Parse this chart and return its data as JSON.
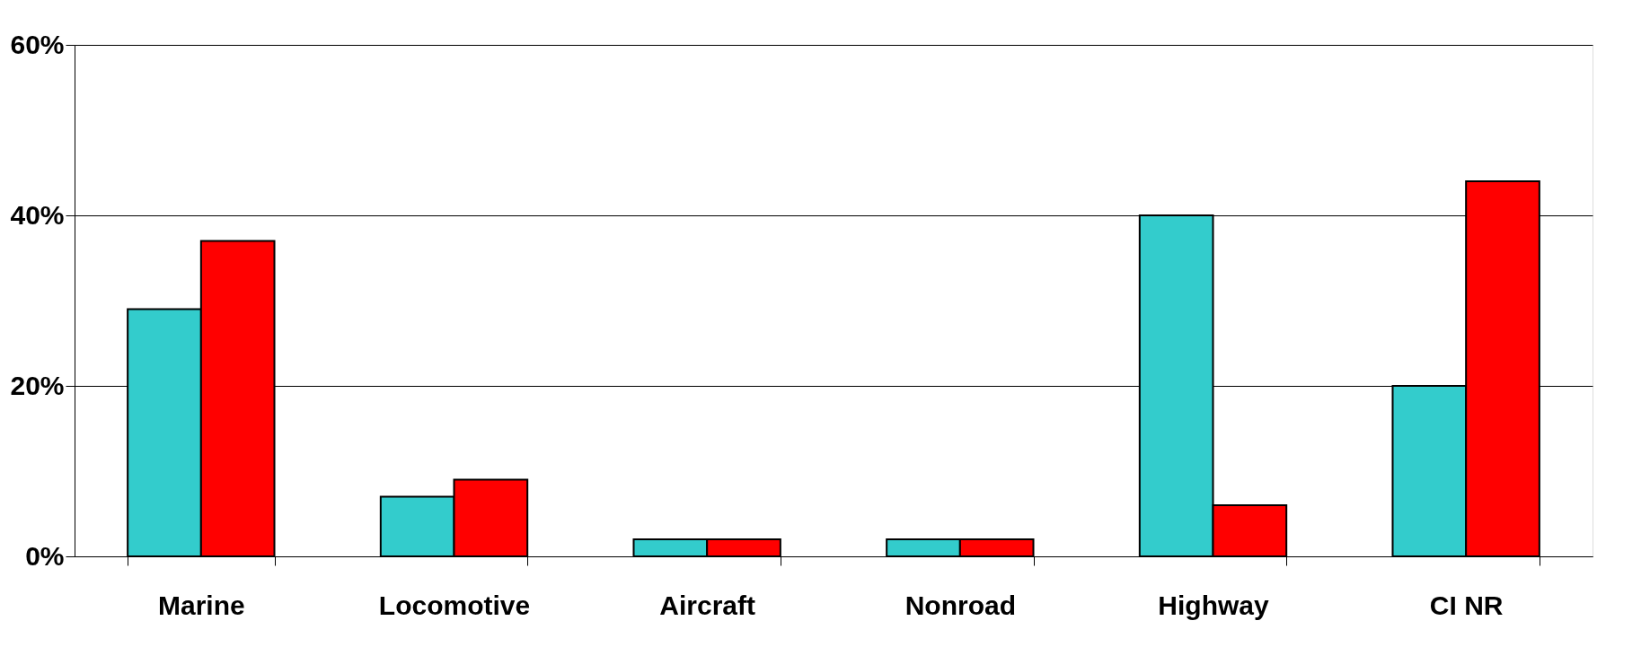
{
  "chart_data": {
    "type": "bar",
    "categories": [
      "Marine",
      "Locomotive",
      "Aircraft",
      "Nonroad",
      "Highway",
      "CI NR"
    ],
    "series": [
      {
        "color": "#33cccc",
        "values": [
          29,
          7,
          2,
          2,
          40,
          20
        ]
      },
      {
        "color": "#ff0000",
        "values": [
          37,
          9,
          2,
          2,
          6,
          44
        ]
      }
    ],
    "ylim": [
      0,
      60
    ],
    "yticks": [
      {
        "value": 0,
        "label": "0%"
      },
      {
        "value": 20,
        "label": "20%"
      },
      {
        "value": 40,
        "label": "40%"
      },
      {
        "value": 60,
        "label": "60%"
      }
    ],
    "grid": "y",
    "legend": false
  }
}
